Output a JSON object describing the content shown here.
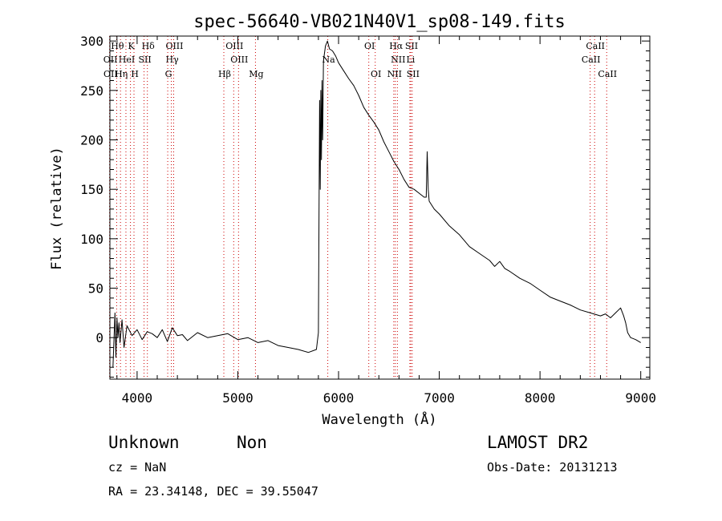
{
  "chart_data": {
    "type": "line",
    "title": "spec-56640-VB021N40V1_sp08-149.fits",
    "xlabel": "Wavelength (Å)",
    "ylabel": "Flux (relative)",
    "xlim": [
      3730,
      9090
    ],
    "ylim": [
      -42,
      305
    ],
    "x_ticks": [
      4000,
      5000,
      6000,
      7000,
      8000,
      9000
    ],
    "y_ticks": [
      0,
      50,
      100,
      150,
      200,
      250,
      300
    ],
    "grid": false,
    "line_color": "#000000",
    "marker_color": "#cc0000",
    "series": [
      {
        "x": [
          3760,
          3780,
          3790,
          3800,
          3810,
          3820,
          3830,
          3850,
          3870,
          3900,
          3950,
          4000,
          4050,
          4100,
          4150,
          4200,
          4250,
          4300,
          4350,
          4400,
          4450,
          4500,
          4600,
          4700,
          4800,
          4900,
          5000,
          5100,
          5200,
          5300,
          5400,
          5500,
          5600,
          5700,
          5780,
          5800,
          5812,
          5818,
          5824,
          5830,
          5836,
          5842,
          5850,
          5870,
          5890,
          5910,
          5940,
          5970,
          6000,
          6050,
          6100,
          6150,
          6200,
          6250,
          6300,
          6350,
          6400,
          6450,
          6500,
          6550,
          6600,
          6650,
          6700,
          6750,
          6800,
          6850,
          6870,
          6880,
          6890,
          6900,
          6950,
          7000,
          7100,
          7200,
          7300,
          7400,
          7500,
          7550,
          7600,
          7650,
          7700,
          7800,
          7900,
          8000,
          8100,
          8200,
          8300,
          8400,
          8500,
          8600,
          8650,
          8700,
          8750,
          8800,
          8830,
          8850,
          8870,
          8900,
          8950,
          9000
        ],
        "y": [
          -30,
          25,
          -20,
          20,
          0,
          15,
          -5,
          18,
          -10,
          12,
          2,
          8,
          -2,
          6,
          4,
          0,
          8,
          -4,
          10,
          2,
          3,
          -3,
          5,
          0,
          2,
          4,
          -2,
          0,
          -5,
          -3,
          -8,
          -10,
          -12,
          -15,
          -12,
          5,
          240,
          150,
          250,
          180,
          260,
          200,
          280,
          295,
          300,
          292,
          290,
          285,
          278,
          270,
          262,
          255,
          245,
          233,
          225,
          218,
          210,
          198,
          188,
          178,
          170,
          160,
          152,
          150,
          146,
          142,
          142,
          188,
          150,
          138,
          130,
          125,
          113,
          104,
          92,
          85,
          78,
          72,
          77,
          70,
          67,
          60,
          55,
          48,
          41,
          37,
          33,
          28,
          25,
          22,
          24,
          20,
          25,
          30,
          22,
          15,
          5,
          0,
          -2,
          -5
        ]
      }
    ],
    "line_markers": [
      {
        "name": "Hθ",
        "x": 3797,
        "row": 1
      },
      {
        "name": "K",
        "x": 3934,
        "row": 1
      },
      {
        "name": "Hδ",
        "x": 4102,
        "row": 1
      },
      {
        "name": "OIII",
        "x": 4363,
        "row": 1
      },
      {
        "name": "OIII",
        "x": 4959,
        "row": 1
      },
      {
        "name": "OI",
        "x": 6300,
        "row": 1
      },
      {
        "name": "Hα",
        "x": 6563,
        "row": 1
      },
      {
        "name": "SII",
        "x": 6717,
        "row": 1
      },
      {
        "name": "CaII",
        "x": 8542,
        "row": 1
      },
      {
        "name": "OII",
        "x": 3727,
        "row": 2
      },
      {
        "name": "HeI",
        "x": 3889,
        "row": 2
      },
      {
        "name": "SII",
        "x": 4069,
        "row": 2
      },
      {
        "name": "Hγ",
        "x": 4340,
        "row": 2
      },
      {
        "name": "OIII",
        "x": 5007,
        "row": 2
      },
      {
        "name": "Na",
        "x": 5893,
        "row": 2
      },
      {
        "name": "NII",
        "x": 6584,
        "row": 2
      },
      {
        "name": "Li",
        "x": 6708,
        "row": 2
      },
      {
        "name": "CaII",
        "x": 8498,
        "row": 2
      },
      {
        "name": "OII",
        "x": 3729,
        "row": 3
      },
      {
        "name": "Hη",
        "x": 3835,
        "row": 3
      },
      {
        "name": "H",
        "x": 3969,
        "row": 3
      },
      {
        "name": "G",
        "x": 4304,
        "row": 3
      },
      {
        "name": "Hβ",
        "x": 4861,
        "row": 3
      },
      {
        "name": "Mg",
        "x": 5175,
        "row": 3
      },
      {
        "name": "OI",
        "x": 6364,
        "row": 3
      },
      {
        "name": "NII",
        "x": 6548,
        "row": 3
      },
      {
        "name": "SII",
        "x": 6731,
        "row": 3
      },
      {
        "name": "CaII",
        "x": 8662,
        "row": 3
      }
    ]
  },
  "info": {
    "class_label": "Unknown",
    "subclass_label": "Non",
    "survey": "LAMOST DR2",
    "cz": "cz = NaN",
    "obs_date": "Obs-Date: 20131213",
    "coords": "RA =  23.34148, DEC =  39.55047"
  }
}
